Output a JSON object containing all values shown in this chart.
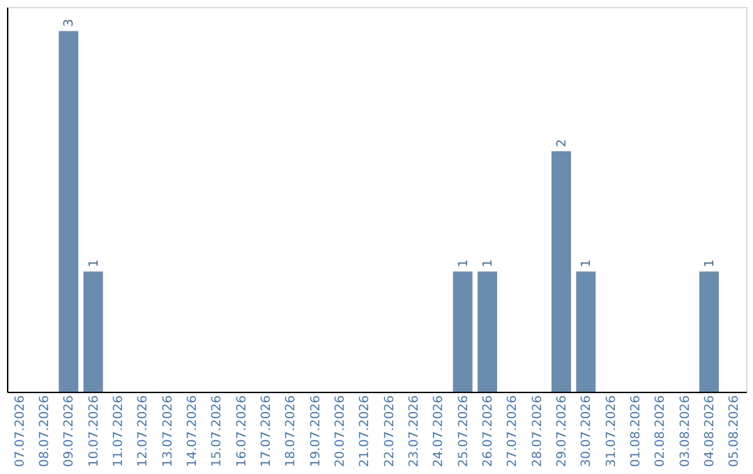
{
  "chart_data": {
    "type": "bar",
    "categories": [
      "07.07.2026",
      "08.07.2026",
      "09.07.2026",
      "10.07.2026",
      "11.07.2026",
      "12.07.2026",
      "13.07.2026",
      "14.07.2026",
      "15.07.2026",
      "16.07.2026",
      "17.07.2026",
      "18.07.2026",
      "19.07.2026",
      "20.07.2026",
      "21.07.2026",
      "22.07.2026",
      "23.07.2026",
      "24.07.2026",
      "25.07.2026",
      "26.07.2026",
      "27.07.2026",
      "28.07.2026",
      "29.07.2026",
      "30.07.2026",
      "31.07.2026",
      "01.08.2026",
      "02.08.2026",
      "03.08.2026",
      "04.08.2026",
      "05.08.2026"
    ],
    "values": [
      0,
      0,
      3,
      1,
      0,
      0,
      0,
      0,
      0,
      0,
      0,
      0,
      0,
      0,
      0,
      0,
      0,
      0,
      1,
      1,
      0,
      0,
      2,
      1,
      0,
      0,
      0,
      0,
      1,
      0
    ],
    "value_labels": [
      null,
      null,
      "3",
      "1",
      null,
      null,
      null,
      null,
      null,
      null,
      null,
      null,
      null,
      null,
      null,
      null,
      null,
      null,
      "1",
      "1",
      null,
      null,
      "2",
      "1",
      null,
      null,
      null,
      null,
      "1",
      null
    ],
    "color": "#6a8caf",
    "ylim": [
      0,
      3.2
    ],
    "tick_labels": "x",
    "grid": false
  }
}
